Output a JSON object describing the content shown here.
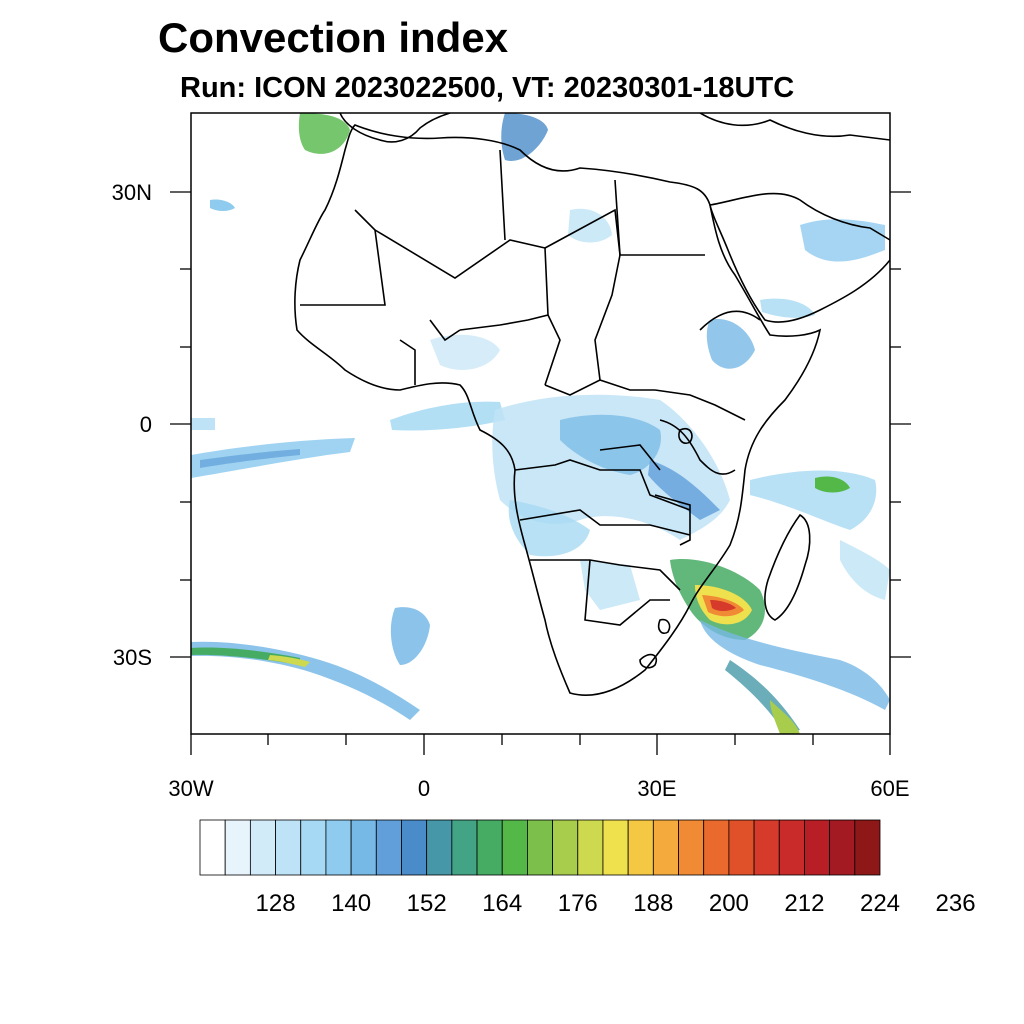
{
  "title": "Convection index",
  "subtitle": "Run: ICON 2023022500,  VT: 20230301-18UTC",
  "map": {
    "lat_labels": [
      "30N",
      "0",
      "30S"
    ],
    "lon_labels": [
      "30W",
      "0",
      "30E",
      "60E"
    ],
    "lon_range": [
      -30,
      60
    ],
    "lat_range": [
      -40,
      40
    ]
  },
  "colorbar": {
    "tick_labels": [
      "128",
      "140",
      "152",
      "164",
      "176",
      "188",
      "200",
      "212",
      "224",
      "236"
    ],
    "colors": [
      "#ffffff",
      "#e8f4fc",
      "#d2ebf8",
      "#bfe3f6",
      "#a6d9f3",
      "#8ecbef",
      "#77b9e6",
      "#609fd9",
      "#4a8cc9",
      "#4698a8",
      "#43a385",
      "#46ac64",
      "#53b848",
      "#7cbf4a",
      "#a8cd4c",
      "#cdd94f",
      "#efe14e",
      "#f5c844",
      "#f4aa3c",
      "#f18a35",
      "#ea6a2d",
      "#e0512a",
      "#d63a2a",
      "#c92a2a",
      "#b81e26",
      "#a31a22",
      "#8e1718"
    ]
  }
}
